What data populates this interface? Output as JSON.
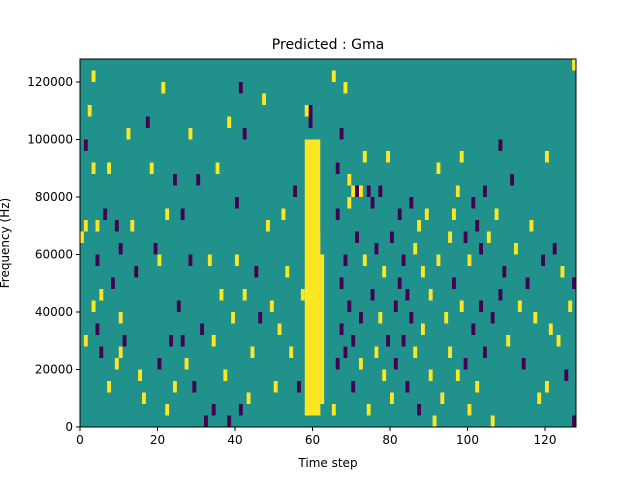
{
  "chart_data": {
    "type": "heatmap",
    "title": "Predicted : Gma",
    "xlabel": "Time step",
    "ylabel": "Frequency (Hz)",
    "xlim": [
      0,
      128
    ],
    "ylim": [
      0,
      128000
    ],
    "x_ticks": [
      0,
      20,
      40,
      60,
      80,
      100,
      120
    ],
    "y_ticks": [
      0,
      20000,
      40000,
      60000,
      80000,
      100000,
      120000
    ],
    "x_tick_labels": [
      "0",
      "20",
      "40",
      "60",
      "80",
      "100",
      "120"
    ],
    "y_tick_labels": [
      "0",
      "20000",
      "40000",
      "60000",
      "80000",
      "100000",
      "120000"
    ],
    "grid": false,
    "colormap": "viridis",
    "levels": [
      -1,
      0,
      1
    ],
    "level_colors": [
      "#440154",
      "#21918c",
      "#fde725"
    ],
    "background_level": 0,
    "cell_width_timesteps": 1,
    "cell_height_hz": 4000,
    "vertical_bands": [
      {
        "x": [
          58,
          62
        ],
        "y": [
          4000,
          100000
        ],
        "value": 1
      },
      {
        "x": [
          59,
          61
        ],
        "y": [
          4000,
          92000
        ],
        "value": 1
      },
      {
        "x": [
          60,
          61
        ],
        "y": [
          4000,
          96000
        ],
        "value": 1
      },
      {
        "x": [
          61,
          62
        ],
        "y": [
          4000,
          68000
        ],
        "value": 1
      },
      {
        "x": [
          62,
          63
        ],
        "y": [
          8000,
          60000
        ],
        "value": 1
      },
      {
        "x": [
          59,
          60
        ],
        "y": [
          104000,
          112000
        ],
        "value": -1
      }
    ],
    "cells": [
      [
        0,
        64000,
        1
      ],
      [
        1,
        28000,
        1
      ],
      [
        1,
        68000,
        1
      ],
      [
        1,
        96000,
        -1
      ],
      [
        2,
        108000,
        1
      ],
      [
        3,
        120000,
        1
      ],
      [
        3,
        88000,
        1
      ],
      [
        3,
        40000,
        1
      ],
      [
        4,
        32000,
        -1
      ],
      [
        4,
        56000,
        -1
      ],
      [
        4,
        68000,
        1
      ],
      [
        5,
        24000,
        -1
      ],
      [
        5,
        44000,
        1
      ],
      [
        6,
        72000,
        -1
      ],
      [
        7,
        88000,
        1
      ],
      [
        7,
        12000,
        1
      ],
      [
        8,
        48000,
        -1
      ],
      [
        9,
        20000,
        1
      ],
      [
        9,
        68000,
        -1
      ],
      [
        10,
        24000,
        1
      ],
      [
        10,
        36000,
        1
      ],
      [
        10,
        60000,
        -1
      ],
      [
        11,
        28000,
        -1
      ],
      [
        12,
        100000,
        1
      ],
      [
        13,
        68000,
        1
      ],
      [
        14,
        52000,
        -1
      ],
      [
        15,
        16000,
        1
      ],
      [
        16,
        8000,
        1
      ],
      [
        17,
        104000,
        -1
      ],
      [
        18,
        88000,
        1
      ],
      [
        19,
        60000,
        -1
      ],
      [
        20,
        20000,
        -1
      ],
      [
        20,
        56000,
        1
      ],
      [
        21,
        116000,
        1
      ],
      [
        22,
        72000,
        1
      ],
      [
        22,
        4000,
        1
      ],
      [
        23,
        28000,
        -1
      ],
      [
        24,
        84000,
        -1
      ],
      [
        24,
        12000,
        1
      ],
      [
        25,
        40000,
        -1
      ],
      [
        26,
        28000,
        -1
      ],
      [
        26,
        72000,
        -1
      ],
      [
        27,
        20000,
        1
      ],
      [
        28,
        56000,
        -1
      ],
      [
        28,
        100000,
        1
      ],
      [
        29,
        12000,
        -1
      ],
      [
        30,
        84000,
        -1
      ],
      [
        31,
        32000,
        -1
      ],
      [
        32,
        0,
        -1
      ],
      [
        33,
        56000,
        1
      ],
      [
        34,
        28000,
        1
      ],
      [
        34,
        4000,
        -1
      ],
      [
        35,
        88000,
        1
      ],
      [
        36,
        44000,
        1
      ],
      [
        37,
        16000,
        1
      ],
      [
        38,
        104000,
        1
      ],
      [
        38,
        0,
        -1
      ],
      [
        39,
        36000,
        1
      ],
      [
        40,
        76000,
        -1
      ],
      [
        40,
        56000,
        1
      ],
      [
        41,
        116000,
        -1
      ],
      [
        41,
        4000,
        -1
      ],
      [
        42,
        44000,
        1
      ],
      [
        42,
        100000,
        -1
      ],
      [
        43,
        8000,
        1
      ],
      [
        44,
        24000,
        1
      ],
      [
        45,
        52000,
        -1
      ],
      [
        46,
        36000,
        -1
      ],
      [
        47,
        112000,
        1
      ],
      [
        48,
        68000,
        1
      ],
      [
        49,
        40000,
        1
      ],
      [
        50,
        12000,
        1
      ],
      [
        51,
        32000,
        1
      ],
      [
        52,
        72000,
        1
      ],
      [
        53,
        52000,
        1
      ],
      [
        54,
        24000,
        1
      ],
      [
        55,
        80000,
        -1
      ],
      [
        56,
        12000,
        -1
      ],
      [
        57,
        44000,
        1
      ],
      [
        58,
        108000,
        1
      ],
      [
        65,
        4000,
        1
      ],
      [
        65,
        120000,
        1
      ],
      [
        66,
        20000,
        -1
      ],
      [
        66,
        72000,
        -1
      ],
      [
        66,
        88000,
        -1
      ],
      [
        67,
        48000,
        -1
      ],
      [
        67,
        32000,
        -1
      ],
      [
        67,
        100000,
        -1
      ],
      [
        68,
        56000,
        -1
      ],
      [
        68,
        24000,
        -1
      ],
      [
        68,
        116000,
        1
      ],
      [
        69,
        76000,
        1
      ],
      [
        69,
        40000,
        -1
      ],
      [
        69,
        84000,
        1
      ],
      [
        70,
        28000,
        -1
      ],
      [
        70,
        80000,
        1
      ],
      [
        70,
        12000,
        -1
      ],
      [
        71,
        64000,
        -1
      ],
      [
        71,
        80000,
        -1
      ],
      [
        72,
        80000,
        1
      ],
      [
        72,
        20000,
        1
      ],
      [
        72,
        36000,
        -1
      ],
      [
        73,
        92000,
        1
      ],
      [
        73,
        56000,
        1
      ],
      [
        74,
        80000,
        -1
      ],
      [
        74,
        4000,
        1
      ],
      [
        75,
        76000,
        -1
      ],
      [
        75,
        44000,
        -1
      ],
      [
        76,
        60000,
        -1
      ],
      [
        76,
        24000,
        1
      ],
      [
        77,
        80000,
        -1
      ],
      [
        77,
        36000,
        1
      ],
      [
        78,
        52000,
        1
      ],
      [
        78,
        16000,
        1
      ],
      [
        79,
        28000,
        -1
      ],
      [
        79,
        92000,
        1
      ],
      [
        80,
        64000,
        -1
      ],
      [
        80,
        8000,
        1
      ],
      [
        81,
        40000,
        -1
      ],
      [
        81,
        20000,
        -1
      ],
      [
        82,
        48000,
        -1
      ],
      [
        82,
        72000,
        -1
      ],
      [
        83,
        56000,
        -1
      ],
      [
        83,
        28000,
        -1
      ],
      [
        84,
        44000,
        -1
      ],
      [
        84,
        12000,
        -1
      ],
      [
        85,
        76000,
        -1
      ],
      [
        85,
        36000,
        -1
      ],
      [
        86,
        60000,
        1
      ],
      [
        86,
        24000,
        1
      ],
      [
        87,
        68000,
        1
      ],
      [
        87,
        4000,
        -1
      ],
      [
        88,
        52000,
        1
      ],
      [
        88,
        32000,
        1
      ],
      [
        89,
        72000,
        1
      ],
      [
        90,
        16000,
        1
      ],
      [
        90,
        44000,
        1
      ],
      [
        91,
        0,
        1
      ],
      [
        92,
        88000,
        1
      ],
      [
        92,
        56000,
        1
      ],
      [
        93,
        8000,
        1
      ],
      [
        94,
        36000,
        1
      ],
      [
        95,
        64000,
        1
      ],
      [
        95,
        24000,
        1
      ],
      [
        96,
        72000,
        1
      ],
      [
        96,
        48000,
        -1
      ],
      [
        97,
        16000,
        1
      ],
      [
        97,
        80000,
        1
      ],
      [
        98,
        40000,
        1
      ],
      [
        98,
        92000,
        1
      ],
      [
        99,
        64000,
        -1
      ],
      [
        99,
        20000,
        -1
      ],
      [
        100,
        56000,
        1
      ],
      [
        100,
        4000,
        1
      ],
      [
        101,
        76000,
        -1
      ],
      [
        101,
        32000,
        -1
      ],
      [
        102,
        68000,
        -1
      ],
      [
        102,
        12000,
        1
      ],
      [
        103,
        60000,
        -1
      ],
      [
        103,
        40000,
        -1
      ],
      [
        104,
        80000,
        -1
      ],
      [
        104,
        24000,
        -1
      ],
      [
        105,
        64000,
        1
      ],
      [
        106,
        36000,
        -1
      ],
      [
        106,
        0,
        1
      ],
      [
        107,
        72000,
        1
      ],
      [
        108,
        44000,
        -1
      ],
      [
        108,
        96000,
        -1
      ],
      [
        109,
        52000,
        -1
      ],
      [
        110,
        28000,
        1
      ],
      [
        111,
        84000,
        -1
      ],
      [
        112,
        60000,
        1
      ],
      [
        113,
        40000,
        1
      ],
      [
        114,
        20000,
        -1
      ],
      [
        115,
        48000,
        -1
      ],
      [
        116,
        68000,
        1
      ],
      [
        117,
        36000,
        1
      ],
      [
        118,
        8000,
        1
      ],
      [
        119,
        56000,
        -1
      ],
      [
        120,
        12000,
        1
      ],
      [
        120,
        92000,
        1
      ],
      [
        121,
        32000,
        1
      ],
      [
        122,
        60000,
        -1
      ],
      [
        123,
        28000,
        1
      ],
      [
        124,
        52000,
        1
      ],
      [
        125,
        16000,
        -1
      ],
      [
        126,
        40000,
        1
      ],
      [
        127,
        0,
        -1
      ],
      [
        127,
        48000,
        -1
      ],
      [
        127,
        124000,
        1
      ]
    ]
  }
}
